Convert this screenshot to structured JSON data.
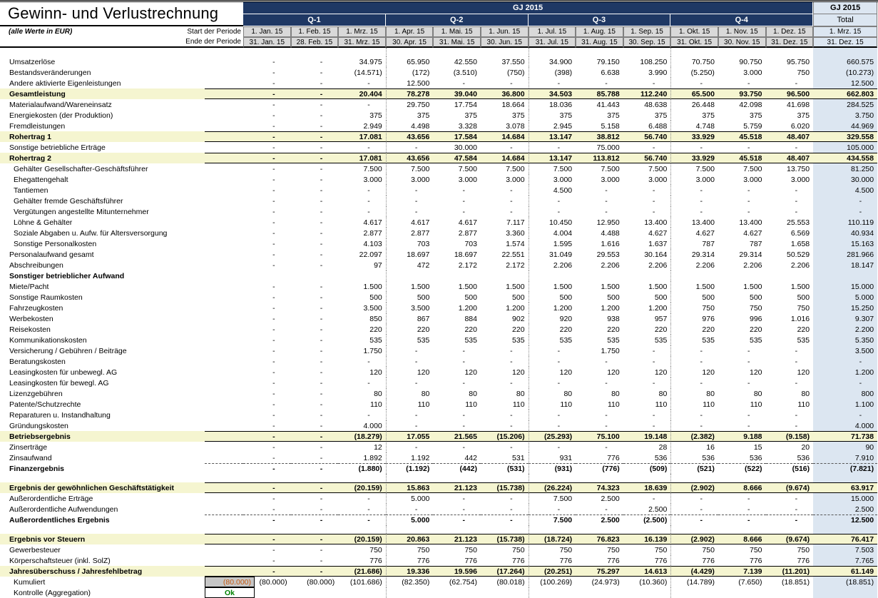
{
  "title": "Gewinn- und Verlustrechnung",
  "subtitle": "(alle Werte in EUR)",
  "period_labels": {
    "start": "Start der Periode",
    "end": "Ende der Periode"
  },
  "header": {
    "year_band": "GJ 2015",
    "quarters": [
      "Q-1",
      "Q-2",
      "Q-3",
      "Q-4"
    ],
    "total_band": "GJ 2015",
    "total_label": "Total",
    "month_start": [
      "1. Jan. 15",
      "1. Feb. 15",
      "1. Mrz. 15",
      "1. Apr. 15",
      "1. Mai. 15",
      "1. Jun. 15",
      "1. Jul. 15",
      "1. Aug. 15",
      "1. Sep. 15",
      "1. Okt. 15",
      "1. Nov. 15",
      "1. Dez. 15"
    ],
    "month_end": [
      "31. Jan. 15",
      "28. Feb. 15",
      "31. Mrz. 15",
      "30. Apr. 15",
      "31. Mai. 15",
      "30. Jun. 15",
      "31. Jul. 15",
      "31. Aug. 15",
      "30. Sep. 15",
      "31. Okt. 15",
      "30. Nov. 15",
      "31. Dez. 15"
    ],
    "total_start": "1. Mrz. 15",
    "total_end": "31. Dez. 15"
  },
  "colors": {
    "header_navy": "#1F3864",
    "subtotal_yellow": "#F5F5D0",
    "total_blue": "#DCE6F1",
    "date_gray": "#D9D9D9",
    "input_text_orange": "#C55A11",
    "ok_green": "#008000"
  },
  "rows": [
    {
      "label": "Umsatzerlöse",
      "style": "normal",
      "values": [
        "-",
        "-",
        "34.975",
        "65.950",
        "42.550",
        "37.550",
        "34.900",
        "79.150",
        "108.250",
        "70.750",
        "90.750",
        "95.750"
      ],
      "total": "660.575"
    },
    {
      "label": "Bestandsveränderungen",
      "style": "normal",
      "values": [
        "-",
        "-",
        "(14.571)",
        "(172)",
        "(3.510)",
        "(750)",
        "(398)",
        "6.638",
        "3.990",
        "(5.250)",
        "3.000",
        "750"
      ],
      "total": "(10.273)"
    },
    {
      "label": "Andere aktivierte Eigenleistungen",
      "style": "normal",
      "values": [
        "-",
        "-",
        "-",
        "12.500",
        "-",
        "-",
        "-",
        "-",
        "-",
        "-",
        "-",
        "-"
      ],
      "total": "12.500"
    },
    {
      "label": "Gesamtleistung",
      "style": "subtotal",
      "values": [
        "-",
        "-",
        "20.404",
        "78.278",
        "39.040",
        "36.800",
        "34.503",
        "85.788",
        "112.240",
        "65.500",
        "93.750",
        "96.500"
      ],
      "total": "662.803"
    },
    {
      "label": "Materialaufwand/Wareneinsatz",
      "style": "normal",
      "values": [
        "-",
        "-",
        "-",
        "29.750",
        "17.754",
        "18.664",
        "18.036",
        "41.443",
        "48.638",
        "26.448",
        "42.098",
        "41.698"
      ],
      "total": "284.525"
    },
    {
      "label": "Energiekosten (der Produktion)",
      "style": "normal",
      "values": [
        "-",
        "-",
        "375",
        "375",
        "375",
        "375",
        "375",
        "375",
        "375",
        "375",
        "375",
        "375"
      ],
      "total": "3.750"
    },
    {
      "label": "Fremdleistungen",
      "style": "normal",
      "values": [
        "-",
        "-",
        "2.949",
        "4.498",
        "3.328",
        "3.078",
        "2.945",
        "5.158",
        "6.488",
        "4.748",
        "5.759",
        "6.020"
      ],
      "total": "44.969"
    },
    {
      "label": "Rohertrag 1",
      "style": "subtotal",
      "values": [
        "-",
        "-",
        "17.081",
        "43.656",
        "17.584",
        "14.684",
        "13.147",
        "38.812",
        "56.740",
        "33.929",
        "45.518",
        "48.407"
      ],
      "total": "329.558"
    },
    {
      "label": "Sonstige betriebliche Erträge",
      "style": "normal",
      "values": [
        "-",
        "-",
        "-",
        "-",
        "30.000",
        "-",
        "-",
        "75.000",
        "-",
        "-",
        "-",
        "-"
      ],
      "total": "105.000"
    },
    {
      "label": "Rohertrag 2",
      "style": "subtotal",
      "values": [
        "-",
        "-",
        "17.081",
        "43.656",
        "47.584",
        "14.684",
        "13.147",
        "113.812",
        "56.740",
        "33.929",
        "45.518",
        "48.407"
      ],
      "total": "434.558"
    },
    {
      "label": "Gehälter Gesellschafter-Geschäftsführer",
      "style": "normal",
      "indent": true,
      "values": [
        "-",
        "-",
        "7.500",
        "7.500",
        "7.500",
        "7.500",
        "7.500",
        "7.500",
        "7.500",
        "7.500",
        "7.500",
        "13.750"
      ],
      "total": "81.250"
    },
    {
      "label": "Ehegattengehalt",
      "style": "normal",
      "indent": true,
      "values": [
        "-",
        "-",
        "3.000",
        "3.000",
        "3.000",
        "3.000",
        "3.000",
        "3.000",
        "3.000",
        "3.000",
        "3.000",
        "3.000"
      ],
      "total": "30.000"
    },
    {
      "label": "Tantiemen",
      "style": "normal",
      "indent": true,
      "values": [
        "-",
        "-",
        "-",
        "-",
        "-",
        "-",
        "4.500",
        "-",
        "-",
        "-",
        "-",
        "-"
      ],
      "total": "4.500"
    },
    {
      "label": "Gehälter fremde Geschäftsführer",
      "style": "normal",
      "indent": true,
      "values": [
        "-",
        "-",
        "-",
        "-",
        "-",
        "-",
        "-",
        "-",
        "-",
        "-",
        "-",
        "-"
      ],
      "total": "-"
    },
    {
      "label": "Vergütungen angestellte Mitunternehmer",
      "style": "normal",
      "indent": true,
      "values": [
        "-",
        "-",
        "-",
        "-",
        "-",
        "-",
        "-",
        "-",
        "-",
        "-",
        "-",
        "-"
      ],
      "total": "-"
    },
    {
      "label": "Löhne & Gehälter",
      "style": "normal",
      "indent": true,
      "values": [
        "-",
        "-",
        "4.617",
        "4.617",
        "4.617",
        "7.117",
        "10.450",
        "12.950",
        "13.400",
        "13.400",
        "13.400",
        "25.553"
      ],
      "total": "110.119"
    },
    {
      "label": "Soziale Abgaben u. Aufw. für Altersversorgung",
      "style": "normal",
      "indent": true,
      "values": [
        "-",
        "-",
        "2.877",
        "2.877",
        "2.877",
        "3.360",
        "4.004",
        "4.488",
        "4.627",
        "4.627",
        "4.627",
        "6.569"
      ],
      "total": "40.934"
    },
    {
      "label": "Sonstige Personalkosten",
      "style": "normal",
      "indent": true,
      "values": [
        "-",
        "-",
        "4.103",
        "703",
        "703",
        "1.574",
        "1.595",
        "1.616",
        "1.637",
        "787",
        "787",
        "1.658"
      ],
      "total": "15.163"
    },
    {
      "label": "Personalaufwand gesamt",
      "style": "normal",
      "values": [
        "-",
        "-",
        "22.097",
        "18.697",
        "18.697",
        "22.551",
        "31.049",
        "29.553",
        "30.164",
        "29.314",
        "29.314",
        "50.529"
      ],
      "total": "281.966"
    },
    {
      "label": "Abschreibungen",
      "style": "normal",
      "values": [
        "-",
        "-",
        "97",
        "472",
        "2.172",
        "2.172",
        "2.206",
        "2.206",
        "2.206",
        "2.206",
        "2.206",
        "2.206"
      ],
      "total": "18.147"
    },
    {
      "label": "Sonstiger betrieblicher Aufwand",
      "style": "section"
    },
    {
      "label": "Miete/Pacht",
      "style": "normal",
      "values": [
        "-",
        "-",
        "1.500",
        "1.500",
        "1.500",
        "1.500",
        "1.500",
        "1.500",
        "1.500",
        "1.500",
        "1.500",
        "1.500"
      ],
      "total": "15.000"
    },
    {
      "label": "Sonstige Raumkosten",
      "style": "normal",
      "values": [
        "-",
        "-",
        "500",
        "500",
        "500",
        "500",
        "500",
        "500",
        "500",
        "500",
        "500",
        "500"
      ],
      "total": "5.000"
    },
    {
      "label": "Fahrzeugkosten",
      "style": "normal",
      "values": [
        "-",
        "-",
        "3.500",
        "3.500",
        "1.200",
        "1.200",
        "1.200",
        "1.200",
        "1.200",
        "750",
        "750",
        "750"
      ],
      "total": "15.250"
    },
    {
      "label": "Werbekosten",
      "style": "normal",
      "values": [
        "-",
        "-",
        "850",
        "867",
        "884",
        "902",
        "920",
        "938",
        "957",
        "976",
        "996",
        "1.016"
      ],
      "total": "9.307"
    },
    {
      "label": "Reisekosten",
      "style": "normal",
      "values": [
        "-",
        "-",
        "220",
        "220",
        "220",
        "220",
        "220",
        "220",
        "220",
        "220",
        "220",
        "220"
      ],
      "total": "2.200"
    },
    {
      "label": "Kommunikationskosten",
      "style": "normal",
      "values": [
        "-",
        "-",
        "535",
        "535",
        "535",
        "535",
        "535",
        "535",
        "535",
        "535",
        "535",
        "535"
      ],
      "total": "5.350"
    },
    {
      "label": "Versicherung / Gebühren / Beiträge",
      "style": "normal",
      "values": [
        "-",
        "-",
        "1.750",
        "-",
        "-",
        "-",
        "-",
        "1.750",
        "-",
        "-",
        "-",
        "-"
      ],
      "total": "3.500"
    },
    {
      "label": "Beratungskosten",
      "style": "normal",
      "values": [
        "-",
        "-",
        "-",
        "-",
        "-",
        "-",
        "-",
        "-",
        "-",
        "-",
        "-",
        "-"
      ],
      "total": "-"
    },
    {
      "label": "Leasingkosten für unbewegl. AG",
      "style": "normal",
      "values": [
        "-",
        "-",
        "120",
        "120",
        "120",
        "120",
        "120",
        "120",
        "120",
        "120",
        "120",
        "120"
      ],
      "total": "1.200"
    },
    {
      "label": "Leasingkosten für bewegl. AG",
      "style": "normal",
      "values": [
        "-",
        "-",
        "-",
        "-",
        "-",
        "-",
        "-",
        "-",
        "-",
        "-",
        "-",
        "-"
      ],
      "total": "-"
    },
    {
      "label": "Lizenzgebühren",
      "style": "normal",
      "values": [
        "-",
        "-",
        "80",
        "80",
        "80",
        "80",
        "80",
        "80",
        "80",
        "80",
        "80",
        "80"
      ],
      "total": "800"
    },
    {
      "label": "Patente/Schutzrechte",
      "style": "normal",
      "values": [
        "-",
        "-",
        "110",
        "110",
        "110",
        "110",
        "110",
        "110",
        "110",
        "110",
        "110",
        "110"
      ],
      "total": "1.100"
    },
    {
      "label": "Reparaturen u. Instandhaltung",
      "style": "normal",
      "values": [
        "-",
        "-",
        "-",
        "-",
        "-",
        "-",
        "-",
        "-",
        "-",
        "-",
        "-",
        "-"
      ],
      "total": "-"
    },
    {
      "label": "Gründungskosten",
      "style": "normal",
      "values": [
        "-",
        "-",
        "4.000",
        "-",
        "-",
        "-",
        "-",
        "-",
        "-",
        "-",
        "-",
        "-"
      ],
      "total": "4.000"
    },
    {
      "label": "Betriebsergebnis",
      "style": "subtotal",
      "values": [
        "-",
        "-",
        "(18.279)",
        "17.055",
        "21.565",
        "(15.206)",
        "(25.293)",
        "75.100",
        "19.148",
        "(2.382)",
        "9.188",
        "(9.158)"
      ],
      "total": "71.738"
    },
    {
      "label": "Zinserträge",
      "style": "normal",
      "values": [
        "-",
        "-",
        "12",
        "-",
        "-",
        "-",
        "-",
        "-",
        "28",
        "16",
        "15",
        "20"
      ],
      "total": "90"
    },
    {
      "label": "Zinsaufwand",
      "style": "normal",
      "values": [
        "-",
        "-",
        "1.892",
        "1.192",
        "442",
        "531",
        "931",
        "776",
        "536",
        "536",
        "536",
        "536"
      ],
      "total": "7.910"
    },
    {
      "label": "Finanzergebnis",
      "style": "boldline",
      "values": [
        "-",
        "-",
        "(1.880)",
        "(1.192)",
        "(442)",
        "(531)",
        "(931)",
        "(776)",
        "(509)",
        "(521)",
        "(522)",
        "(516)"
      ],
      "total": "(7.821)"
    },
    {
      "label": "",
      "style": "spacer"
    },
    {
      "label": "Ergebnis der gewöhnlichen Geschäftstätigkeit",
      "style": "subtotal",
      "values": [
        "-",
        "-",
        "(20.159)",
        "15.863",
        "21.123",
        "(15.738)",
        "(26.224)",
        "74.323",
        "18.639",
        "(2.902)",
        "8.666",
        "(9.674)"
      ],
      "total": "63.917"
    },
    {
      "label": "Außerordentliche Erträge",
      "style": "normal",
      "values": [
        "-",
        "-",
        "-",
        "5.000",
        "-",
        "-",
        "7.500",
        "2.500",
        "-",
        "-",
        "-",
        "-"
      ],
      "total": "15.000"
    },
    {
      "label": "Außerordentliche Aufwendungen",
      "style": "normal",
      "values": [
        "-",
        "-",
        "-",
        "-",
        "-",
        "-",
        "-",
        "-",
        "2.500",
        "-",
        "-",
        "-"
      ],
      "total": "2.500"
    },
    {
      "label": "Außerordentliches Ergebnis",
      "style": "boldline",
      "values": [
        "-",
        "-",
        "-",
        "5.000",
        "-",
        "-",
        "7.500",
        "2.500",
        "(2.500)",
        "-",
        "-",
        "-"
      ],
      "total": "12.500"
    },
    {
      "label": "",
      "style": "spacer"
    },
    {
      "label": "Ergebnis vor Steuern",
      "style": "subtotal",
      "values": [
        "-",
        "-",
        "(20.159)",
        "20.863",
        "21.123",
        "(15.738)",
        "(18.724)",
        "76.823",
        "16.139",
        "(2.902)",
        "8.666",
        "(9.674)"
      ],
      "total": "76.417"
    },
    {
      "label": "Gewerbesteuer",
      "style": "normal",
      "values": [
        "-",
        "-",
        "750",
        "750",
        "750",
        "750",
        "750",
        "750",
        "750",
        "750",
        "750",
        "750"
      ],
      "total": "7.503"
    },
    {
      "label": "Körperschaftsteuer (inkl. SolZ)",
      "style": "normal",
      "values": [
        "-",
        "-",
        "776",
        "776",
        "776",
        "776",
        "776",
        "776",
        "776",
        "776",
        "776",
        "776"
      ],
      "total": "7.765"
    },
    {
      "label": "Jahresüberschuss / Jahresfehlbetrag",
      "style": "subtotal",
      "values": [
        "-",
        "-",
        "(21.686)",
        "19.336",
        "19.596",
        "(17.264)",
        "(20.251)",
        "75.297",
        "14.613",
        "(4.429)",
        "7.139",
        "(11.201)"
      ],
      "total": "61.149"
    },
    {
      "label": "Kumuliert",
      "style": "kumuliert",
      "indent": true,
      "aux": "(80.000)",
      "values": [
        "(80.000)",
        "(80.000)",
        "(101.686)",
        "(82.350)",
        "(62.754)",
        "(80.018)",
        "(100.269)",
        "(24.973)",
        "(10.360)",
        "(14.789)",
        "(7.650)",
        "(18.851)"
      ],
      "total": "(18.851)"
    },
    {
      "label": "Kontrolle (Aggregation)",
      "style": "kontrolle",
      "indent": true,
      "aux": "Ok"
    }
  ]
}
